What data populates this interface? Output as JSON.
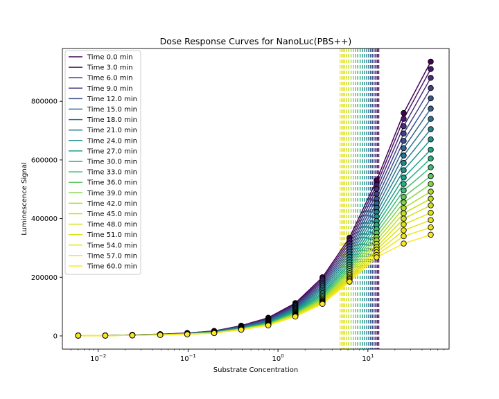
{
  "chart_data": {
    "type": "scatter",
    "title": "Dose Response Curves for NanoLuc(PBS++)",
    "xlabel": "Substrate Concentration",
    "ylabel": "Luminescence Signal",
    "x_scale": "log",
    "xlim": [
      0.004,
      80
    ],
    "ylim": [
      -45000,
      980000
    ],
    "x_ticks": [
      {
        "value": 0.01,
        "base": "10",
        "exp": "−2"
      },
      {
        "value": 0.1,
        "base": "10",
        "exp": "−1"
      },
      {
        "value": 1,
        "base": "10",
        "exp": "0"
      },
      {
        "value": 10,
        "base": "10",
        "exp": "1"
      }
    ],
    "y_ticks": [
      {
        "value": 0,
        "label": "0"
      },
      {
        "value": 200000,
        "label": "200000"
      },
      {
        "value": 400000,
        "label": "400000"
      },
      {
        "value": 600000,
        "label": "600000"
      },
      {
        "value": 800000,
        "label": "800000"
      }
    ],
    "grid": false,
    "legend_position": "upper-left",
    "x": [
      0.006,
      0.012,
      0.024,
      0.049,
      0.098,
      0.195,
      0.39,
      0.78,
      1.56,
      3.125,
      6.25,
      12.5,
      25,
      50
    ],
    "marker_style": "circle with black edge, one color per series",
    "line_style": "fitted sigmoid curve per series; dashed vertical line at each series EC50",
    "series": [
      {
        "name": "Time 0.0 min",
        "color": "#440154",
        "ec50": 13.2,
        "values": [
          1000,
          1500,
          3500,
          6000,
          10000,
          17000,
          35000,
          62000,
          112000,
          200000,
          335000,
          530000,
          760000,
          935000
        ]
      },
      {
        "name": "Time 3.0 min",
        "color": "#48186a",
        "ec50": 12.7,
        "values": [
          1000,
          1500,
          3400,
          5800,
          9700,
          16500,
          34000,
          60000,
          109000,
          194000,
          325000,
          515000,
          740000,
          910000
        ]
      },
      {
        "name": "Time 6.0 min",
        "color": "#472d7b",
        "ec50": 12.2,
        "values": [
          1000,
          1500,
          3300,
          5600,
          9400,
          16000,
          33000,
          58000,
          106000,
          188000,
          315000,
          500000,
          715000,
          880000
        ]
      },
      {
        "name": "Time 9.0 min",
        "color": "#424086",
        "ec50": 11.7,
        "values": [
          1000,
          1500,
          3200,
          5400,
          9100,
          15500,
          32000,
          56000,
          103000,
          182000,
          305000,
          484000,
          690000,
          845000
        ]
      },
      {
        "name": "Time 12.0 min",
        "color": "#3b528b",
        "ec50": 11.2,
        "values": [
          1000,
          1400,
          3100,
          5200,
          8800,
          15000,
          31000,
          54000,
          100000,
          176000,
          296000,
          468000,
          665000,
          810000
        ]
      },
      {
        "name": "Time 15.0 min",
        "color": "#33638d",
        "ec50": 10.7,
        "values": [
          1000,
          1400,
          3000,
          5000,
          8500,
          14500,
          30000,
          52000,
          97000,
          170000,
          287000,
          452000,
          640000,
          775000
        ]
      },
      {
        "name": "Time 18.0 min",
        "color": "#2c728e",
        "ec50": 10.2,
        "values": [
          1000,
          1400,
          2900,
          4800,
          8200,
          14000,
          29000,
          50000,
          94000,
          164000,
          278000,
          437000,
          615000,
          740000
        ]
      },
      {
        "name": "Time 21.0 min",
        "color": "#26828e",
        "ec50": 9.7,
        "values": [
          1000,
          1400,
          2800,
          4600,
          7900,
          13500,
          28000,
          48000,
          91000,
          158000,
          269000,
          422000,
          590000,
          705000
        ]
      },
      {
        "name": "Time 24.0 min",
        "color": "#21918c",
        "ec50": 9.2,
        "values": [
          1000,
          1300,
          2700,
          4400,
          7600,
          13000,
          27000,
          46500,
          88000,
          152000,
          260000,
          407000,
          565000,
          670000
        ]
      },
      {
        "name": "Time 27.0 min",
        "color": "#1fa088",
        "ec50": 8.7,
        "values": [
          1000,
          1300,
          2600,
          4300,
          7300,
          12600,
          26000,
          45000,
          85000,
          146000,
          251000,
          392000,
          540000,
          635000
        ]
      },
      {
        "name": "Time 30.0 min",
        "color": "#28ae80",
        "ec50": 8.2,
        "values": [
          1000,
          1300,
          2500,
          4200,
          7000,
          12200,
          25000,
          43500,
          82000,
          141000,
          243000,
          378000,
          518000,
          605000
        ]
      },
      {
        "name": "Time 33.0 min",
        "color": "#3fbc73",
        "ec50": 7.7,
        "values": [
          1000,
          1300,
          2400,
          4100,
          6800,
          11800,
          24500,
          42000,
          79500,
          136000,
          235000,
          364000,
          496000,
          575000
        ]
      },
      {
        "name": "Time 36.0 min",
        "color": "#5ec962",
        "ec50": 7.3,
        "values": [
          1000,
          1200,
          2300,
          4000,
          6600,
          11400,
          24000,
          41000,
          77000,
          131000,
          228000,
          351000,
          474000,
          545000
        ]
      },
      {
        "name": "Time 39.0 min",
        "color": "#84d44b",
        "ec50": 6.9,
        "values": [
          1000,
          1200,
          2200,
          3900,
          6400,
          11000,
          23500,
          40000,
          75000,
          127000,
          221000,
          338000,
          455000,
          518000
        ]
      },
      {
        "name": "Time 42.0 min",
        "color": "#addc30",
        "ec50": 6.5,
        "values": [
          1000,
          1200,
          2100,
          3800,
          6200,
          10700,
          23000,
          39000,
          73000,
          123000,
          214000,
          326000,
          436000,
          492000
        ]
      },
      {
        "name": "Time 45.0 min",
        "color": "#c3df2a",
        "ec50": 6.1,
        "values": [
          1000,
          1200,
          2000,
          3700,
          6000,
          10400,
          22500,
          38500,
          71500,
          120000,
          208000,
          314000,
          418000,
          468000
        ]
      },
      {
        "name": "Time 48.0 min",
        "color": "#d0e11c",
        "ec50": 5.8,
        "values": [
          1000,
          1200,
          2000,
          3600,
          5900,
          10200,
          22000,
          38000,
          70000,
          117000,
          202000,
          303000,
          400000,
          445000
        ]
      },
      {
        "name": "Time 51.0 min",
        "color": "#dde318",
        "ec50": 5.5,
        "values": [
          1000,
          1100,
          1900,
          3500,
          5800,
          10000,
          21800,
          37500,
          69000,
          115000,
          197000,
          294000,
          380000,
          420000
        ]
      },
      {
        "name": "Time 54.0 min",
        "color": "#e8e419",
        "ec50": 5.3,
        "values": [
          1000,
          1100,
          1900,
          3400,
          5700,
          9800,
          21500,
          37000,
          68000,
          113000,
          193000,
          285000,
          360000,
          395000
        ]
      },
      {
        "name": "Time 57.0 min",
        "color": "#f2e51d",
        "ec50": 5.1,
        "values": [
          1000,
          1100,
          1800,
          3300,
          5600,
          9600,
          21200,
          36500,
          67000,
          111000,
          189000,
          276000,
          340000,
          370000
        ]
      },
      {
        "name": "Time 60.0 min",
        "color": "#fde725",
        "ec50": 4.9,
        "values": [
          1000,
          1100,
          1800,
          3200,
          5500,
          9500,
          21000,
          36000,
          66000,
          109000,
          185000,
          268000,
          315000,
          345000
        ]
      }
    ]
  }
}
